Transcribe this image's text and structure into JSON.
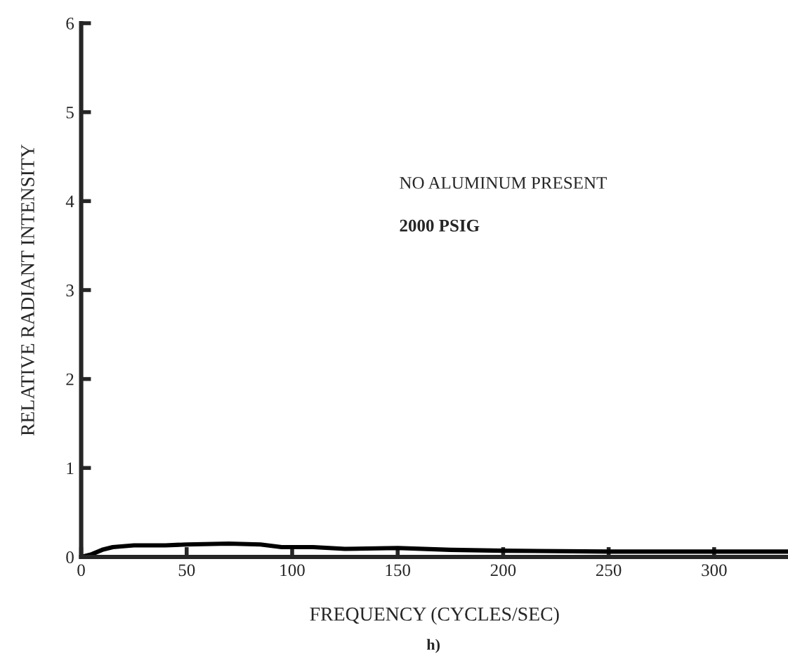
{
  "chart_data": {
    "type": "line",
    "xlabel": "FREQUENCY (CYCLES/SEC)",
    "ylabel": "RELATIVE RADIANT INTENSITY",
    "annotations": [
      "NO ALUMINUM PRESENT",
      "2000 PSIG",
      "h)"
    ],
    "x": [
      0,
      5,
      10,
      15,
      25,
      40,
      50,
      70,
      85,
      95,
      110,
      125,
      150,
      175,
      200,
      250,
      300,
      335
    ],
    "series": [
      {
        "color": "#000000",
        "values": [
          0,
          0.03,
          0.08,
          0.11,
          0.13,
          0.13,
          0.14,
          0.15,
          0.14,
          0.11,
          0.11,
          0.09,
          0.1,
          0.08,
          0.07,
          0.06,
          0.06,
          0.06
        ]
      }
    ],
    "xlim": [
      0,
      335
    ],
    "ylim": [
      0,
      6
    ],
    "xticks": [
      0,
      50,
      100,
      150,
      200,
      250,
      300
    ],
    "yticks": [
      0,
      1,
      2,
      3,
      4,
      5,
      6
    ],
    "grid": false,
    "legend": false,
    "marker": "none",
    "line_style": "solid"
  }
}
